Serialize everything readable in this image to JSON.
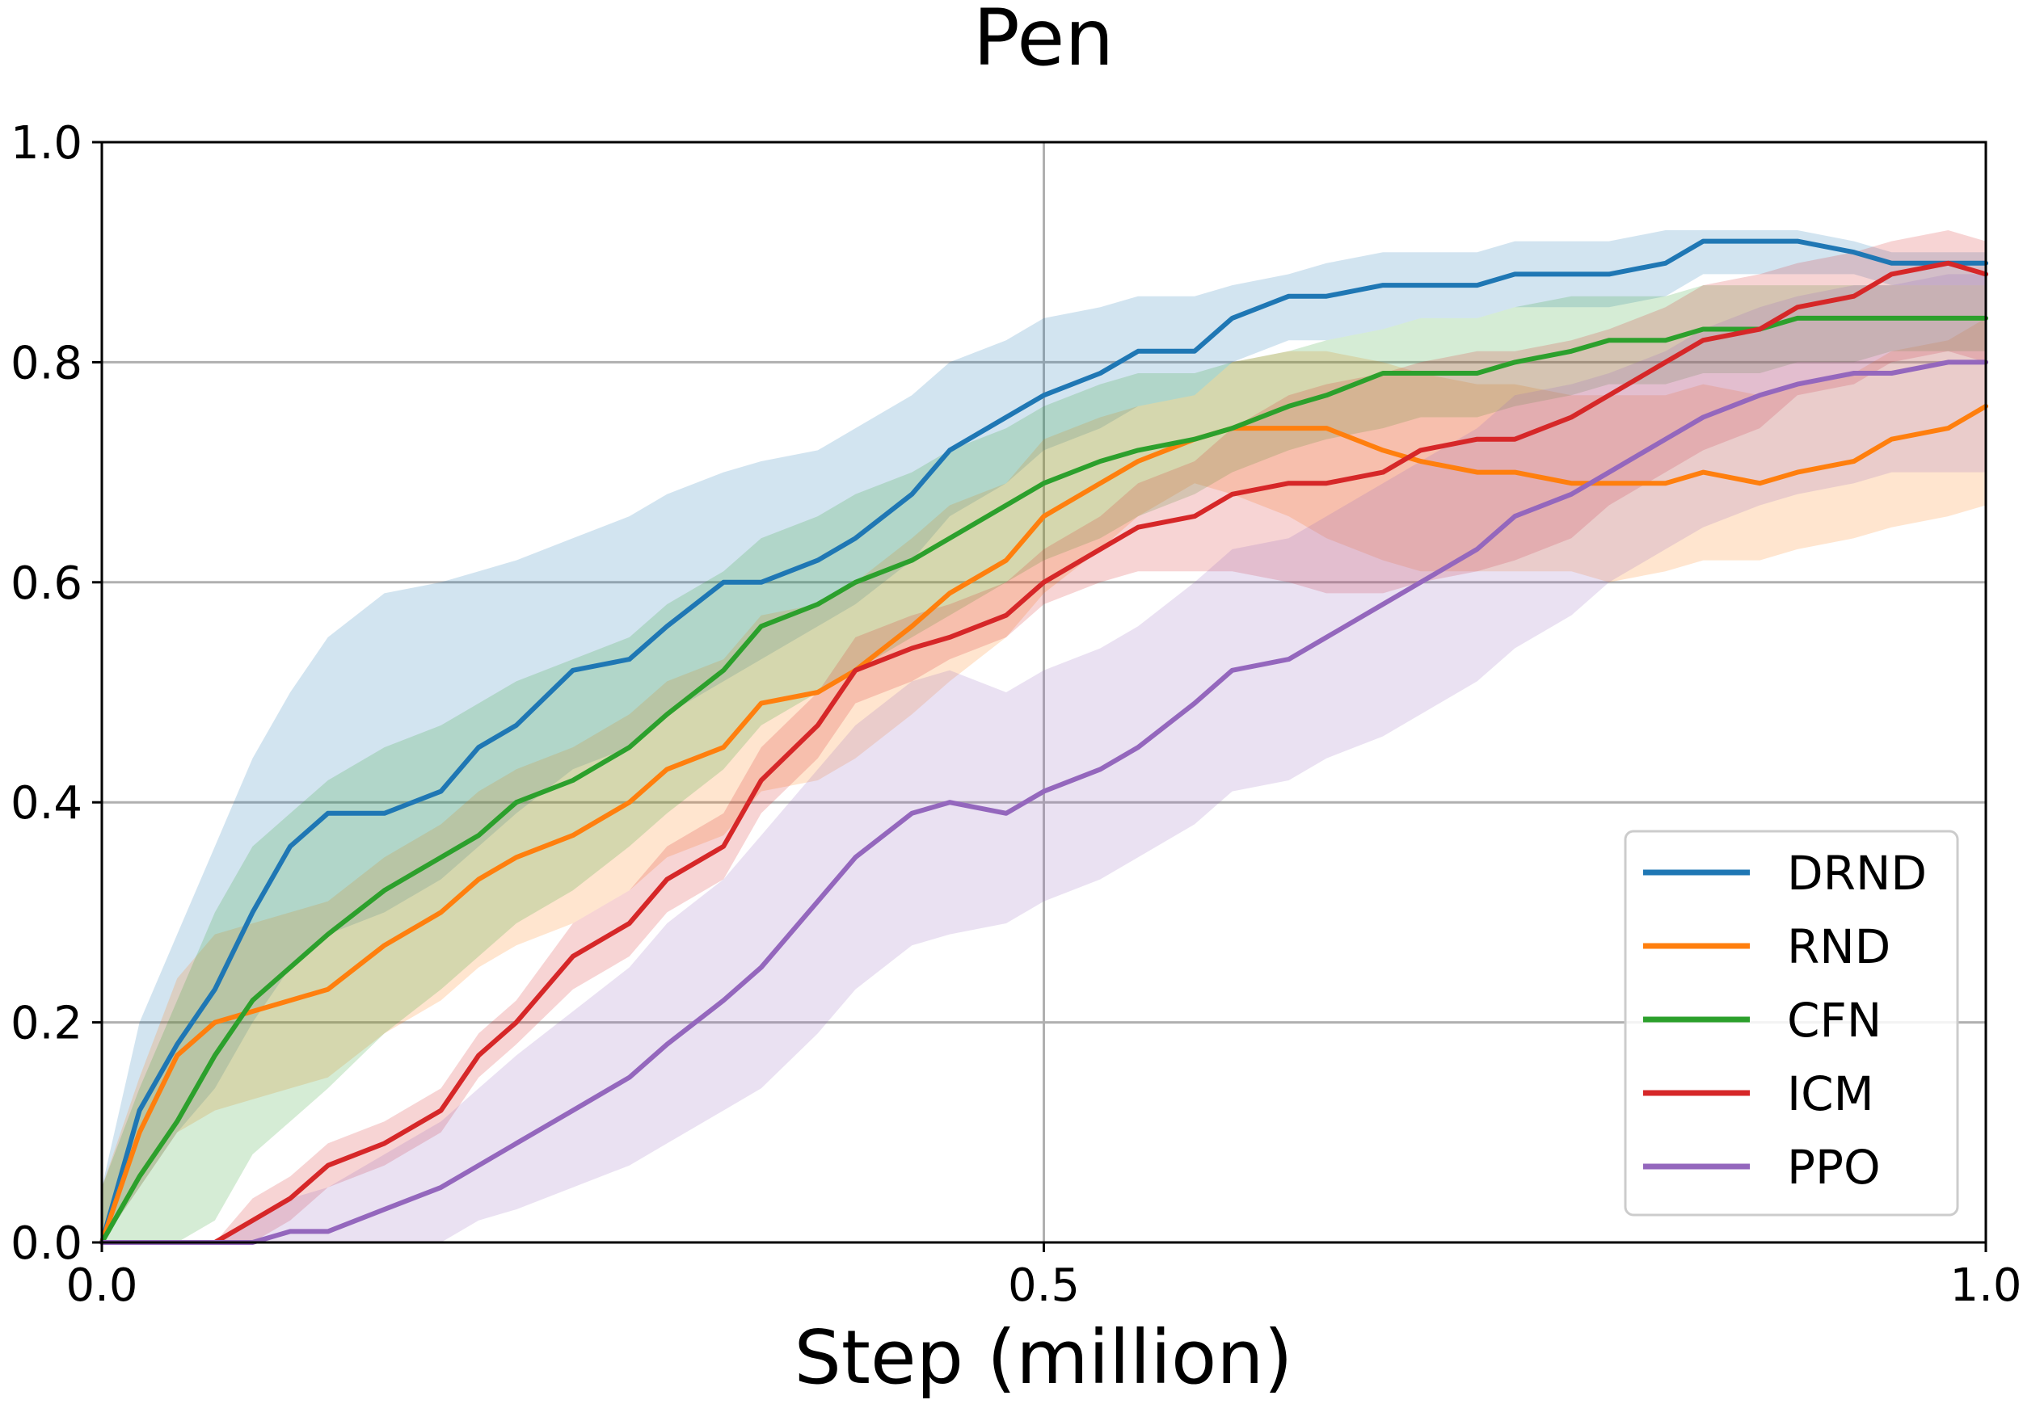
{
  "chart_data": {
    "type": "line",
    "title": "Pen",
    "xlabel": "Step (million)",
    "ylabel": "",
    "xlim": [
      0,
      1
    ],
    "ylim": [
      0,
      1
    ],
    "xticks": [
      0.0,
      0.5,
      1.0
    ],
    "xtick_labels": [
      "0.0",
      "0.5",
      "1.0"
    ],
    "yticks": [
      0.0,
      0.2,
      0.4,
      0.6,
      0.8,
      1.0
    ],
    "ytick_labels": [
      "0.0",
      "0.2",
      "0.4",
      "0.6",
      "0.8",
      "1.0"
    ],
    "grid": true,
    "legend_position": "bottom-right",
    "x": [
      0,
      0.02,
      0.04,
      0.06,
      0.08,
      0.1,
      0.12,
      0.15,
      0.18,
      0.2,
      0.22,
      0.25,
      0.28,
      0.3,
      0.33,
      0.35,
      0.38,
      0.4,
      0.43,
      0.45,
      0.48,
      0.5,
      0.53,
      0.55,
      0.58,
      0.6,
      0.63,
      0.65,
      0.68,
      0.7,
      0.73,
      0.75,
      0.78,
      0.8,
      0.83,
      0.85,
      0.88,
      0.9,
      0.93,
      0.95,
      0.98,
      1.0
    ],
    "series": [
      {
        "name": "DRND",
        "color": "#1f77b4",
        "values": [
          0.0,
          0.12,
          0.18,
          0.23,
          0.3,
          0.36,
          0.39,
          0.39,
          0.41,
          0.45,
          0.47,
          0.52,
          0.53,
          0.56,
          0.6,
          0.6,
          0.62,
          0.64,
          0.68,
          0.72,
          0.75,
          0.77,
          0.79,
          0.81,
          0.81,
          0.84,
          0.86,
          0.86,
          0.87,
          0.87,
          0.87,
          0.88,
          0.88,
          0.88,
          0.89,
          0.91,
          0.91,
          0.91,
          0.9,
          0.89,
          0.89,
          0.89
        ],
        "lower": [
          0.0,
          0.05,
          0.1,
          0.14,
          0.2,
          0.25,
          0.28,
          0.3,
          0.33,
          0.36,
          0.39,
          0.43,
          0.45,
          0.48,
          0.51,
          0.53,
          0.56,
          0.58,
          0.62,
          0.66,
          0.69,
          0.72,
          0.74,
          0.76,
          0.77,
          0.8,
          0.82,
          0.82,
          0.83,
          0.84,
          0.84,
          0.85,
          0.85,
          0.85,
          0.86,
          0.88,
          0.88,
          0.88,
          0.88,
          0.87,
          0.87,
          0.87
        ],
        "upper": [
          0.05,
          0.2,
          0.28,
          0.36,
          0.44,
          0.5,
          0.55,
          0.59,
          0.6,
          0.61,
          0.62,
          0.64,
          0.66,
          0.68,
          0.7,
          0.71,
          0.72,
          0.74,
          0.77,
          0.8,
          0.82,
          0.84,
          0.85,
          0.86,
          0.86,
          0.87,
          0.88,
          0.89,
          0.9,
          0.9,
          0.9,
          0.91,
          0.91,
          0.91,
          0.92,
          0.92,
          0.92,
          0.92,
          0.91,
          0.9,
          0.9,
          0.9
        ]
      },
      {
        "name": "RND",
        "color": "#ff7f0e",
        "values": [
          0.0,
          0.1,
          0.17,
          0.2,
          0.21,
          0.22,
          0.23,
          0.27,
          0.3,
          0.33,
          0.35,
          0.37,
          0.4,
          0.43,
          0.45,
          0.49,
          0.5,
          0.52,
          0.56,
          0.59,
          0.62,
          0.66,
          0.69,
          0.71,
          0.73,
          0.74,
          0.74,
          0.74,
          0.72,
          0.71,
          0.7,
          0.7,
          0.69,
          0.69,
          0.69,
          0.7,
          0.69,
          0.7,
          0.71,
          0.73,
          0.74,
          0.76
        ],
        "lower": [
          0.0,
          0.05,
          0.1,
          0.12,
          0.13,
          0.14,
          0.15,
          0.19,
          0.22,
          0.25,
          0.27,
          0.29,
          0.32,
          0.35,
          0.37,
          0.41,
          0.42,
          0.44,
          0.48,
          0.51,
          0.55,
          0.59,
          0.63,
          0.66,
          0.69,
          0.68,
          0.66,
          0.64,
          0.62,
          0.61,
          0.61,
          0.61,
          0.61,
          0.6,
          0.61,
          0.62,
          0.62,
          0.63,
          0.64,
          0.65,
          0.66,
          0.67
        ],
        "upper": [
          0.05,
          0.15,
          0.24,
          0.28,
          0.29,
          0.3,
          0.31,
          0.35,
          0.38,
          0.41,
          0.43,
          0.45,
          0.48,
          0.51,
          0.53,
          0.57,
          0.58,
          0.6,
          0.64,
          0.67,
          0.69,
          0.73,
          0.75,
          0.76,
          0.77,
          0.8,
          0.81,
          0.81,
          0.8,
          0.79,
          0.78,
          0.78,
          0.77,
          0.77,
          0.77,
          0.78,
          0.77,
          0.78,
          0.79,
          0.81,
          0.82,
          0.84
        ]
      },
      {
        "name": "CFN",
        "color": "#2ca02c",
        "values": [
          0.0,
          0.06,
          0.11,
          0.17,
          0.22,
          0.25,
          0.28,
          0.32,
          0.35,
          0.37,
          0.4,
          0.42,
          0.45,
          0.48,
          0.52,
          0.56,
          0.58,
          0.6,
          0.62,
          0.64,
          0.67,
          0.69,
          0.71,
          0.72,
          0.73,
          0.74,
          0.76,
          0.77,
          0.79,
          0.79,
          0.79,
          0.8,
          0.81,
          0.82,
          0.82,
          0.83,
          0.83,
          0.84,
          0.84,
          0.84,
          0.84,
          0.84
        ],
        "lower": [
          0.0,
          0.0,
          0.0,
          0.02,
          0.08,
          0.11,
          0.14,
          0.19,
          0.23,
          0.26,
          0.29,
          0.32,
          0.36,
          0.39,
          0.43,
          0.47,
          0.5,
          0.52,
          0.55,
          0.57,
          0.6,
          0.62,
          0.64,
          0.66,
          0.68,
          0.7,
          0.72,
          0.73,
          0.74,
          0.75,
          0.75,
          0.76,
          0.77,
          0.78,
          0.78,
          0.79,
          0.79,
          0.8,
          0.8,
          0.81,
          0.81,
          0.81
        ],
        "upper": [
          0.05,
          0.14,
          0.22,
          0.3,
          0.36,
          0.39,
          0.42,
          0.45,
          0.47,
          0.49,
          0.51,
          0.53,
          0.55,
          0.58,
          0.61,
          0.64,
          0.66,
          0.68,
          0.7,
          0.72,
          0.74,
          0.76,
          0.78,
          0.79,
          0.79,
          0.8,
          0.81,
          0.82,
          0.83,
          0.84,
          0.84,
          0.85,
          0.86,
          0.86,
          0.86,
          0.87,
          0.87,
          0.87,
          0.87,
          0.87,
          0.87,
          0.87
        ]
      },
      {
        "name": "ICM",
        "color": "#d62728",
        "values": [
          0.0,
          0.0,
          0.0,
          0.0,
          0.02,
          0.04,
          0.07,
          0.09,
          0.12,
          0.17,
          0.2,
          0.26,
          0.29,
          0.33,
          0.36,
          0.42,
          0.47,
          0.52,
          0.54,
          0.55,
          0.57,
          0.6,
          0.63,
          0.65,
          0.66,
          0.68,
          0.69,
          0.69,
          0.7,
          0.72,
          0.73,
          0.73,
          0.75,
          0.77,
          0.8,
          0.82,
          0.83,
          0.85,
          0.86,
          0.88,
          0.89,
          0.88
        ],
        "lower": [
          0.0,
          0.0,
          0.0,
          0.0,
          0.0,
          0.02,
          0.05,
          0.07,
          0.1,
          0.15,
          0.18,
          0.23,
          0.26,
          0.3,
          0.33,
          0.39,
          0.44,
          0.49,
          0.51,
          0.53,
          0.55,
          0.58,
          0.6,
          0.61,
          0.61,
          0.61,
          0.6,
          0.59,
          0.59,
          0.6,
          0.61,
          0.62,
          0.64,
          0.67,
          0.7,
          0.72,
          0.74,
          0.77,
          0.78,
          0.8,
          0.81,
          0.8
        ],
        "upper": [
          0.0,
          0.0,
          0.0,
          0.0,
          0.04,
          0.06,
          0.09,
          0.11,
          0.14,
          0.19,
          0.22,
          0.29,
          0.32,
          0.36,
          0.39,
          0.45,
          0.5,
          0.55,
          0.57,
          0.58,
          0.6,
          0.63,
          0.66,
          0.69,
          0.71,
          0.74,
          0.77,
          0.78,
          0.79,
          0.8,
          0.81,
          0.81,
          0.82,
          0.83,
          0.85,
          0.87,
          0.88,
          0.89,
          0.9,
          0.91,
          0.92,
          0.91
        ]
      },
      {
        "name": "PPO",
        "color": "#9467bd",
        "values": [
          0.0,
          0.0,
          0.0,
          0.0,
          0.0,
          0.01,
          0.01,
          0.03,
          0.05,
          0.07,
          0.09,
          0.12,
          0.15,
          0.18,
          0.22,
          0.25,
          0.31,
          0.35,
          0.39,
          0.4,
          0.39,
          0.41,
          0.43,
          0.45,
          0.49,
          0.52,
          0.53,
          0.55,
          0.58,
          0.6,
          0.63,
          0.66,
          0.68,
          0.7,
          0.73,
          0.75,
          0.77,
          0.78,
          0.79,
          0.79,
          0.8,
          0.8
        ],
        "lower": [
          0.0,
          0.0,
          0.0,
          0.0,
          0.0,
          0.0,
          0.0,
          0.0,
          0.0,
          0.02,
          0.03,
          0.05,
          0.07,
          0.09,
          0.12,
          0.14,
          0.19,
          0.23,
          0.27,
          0.28,
          0.29,
          0.31,
          0.33,
          0.35,
          0.38,
          0.41,
          0.42,
          0.44,
          0.46,
          0.48,
          0.51,
          0.54,
          0.57,
          0.6,
          0.63,
          0.65,
          0.67,
          0.68,
          0.69,
          0.7,
          0.7,
          0.7
        ],
        "upper": [
          0.0,
          0.0,
          0.0,
          0.0,
          0.02,
          0.04,
          0.05,
          0.08,
          0.11,
          0.14,
          0.17,
          0.21,
          0.25,
          0.29,
          0.33,
          0.37,
          0.43,
          0.47,
          0.51,
          0.52,
          0.5,
          0.52,
          0.54,
          0.56,
          0.6,
          0.63,
          0.64,
          0.66,
          0.69,
          0.71,
          0.74,
          0.77,
          0.78,
          0.79,
          0.81,
          0.83,
          0.85,
          0.86,
          0.87,
          0.87,
          0.88,
          0.88
        ]
      }
    ]
  }
}
